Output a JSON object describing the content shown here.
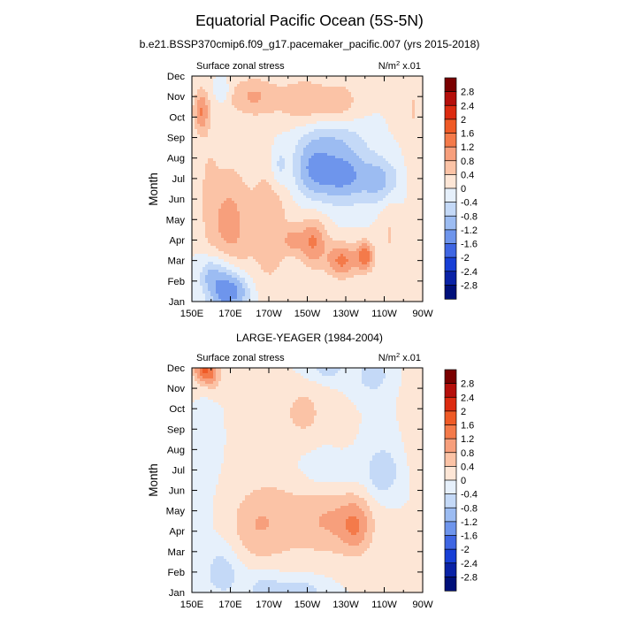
{
  "title": "Equatorial Pacific Ocean (5S-5N)",
  "colorbar": {
    "levels": [
      "2.8",
      "2.4",
      "2",
      "1.6",
      "1.2",
      "0.8",
      "0.4",
      "0",
      "-0.4",
      "-0.8",
      "-1.2",
      "-1.6",
      "-2",
      "-2.4",
      "-2.8"
    ],
    "colors": [
      "#7a0000",
      "#b50f0b",
      "#dc2b10",
      "#ef5a26",
      "#f47a4a",
      "#f79f7c",
      "#fbc3a6",
      "#fde6d6",
      "#e6f0fb",
      "#c4d9f7",
      "#9cbcf2",
      "#6e95ec",
      "#3f66e3",
      "#173fd6",
      "#0a22a6",
      "#00107a"
    ]
  },
  "chart_data": [
    {
      "type": "heatmap",
      "panel_title": "b.e21.BSSP370cmip6.f09_g17.pacemaker_pacific.007 (yrs 2015-2018)",
      "left_label": "Surface zonal stress",
      "right_label_prefix": "N/m",
      "right_label_sup": "2",
      "right_label_suffix": " x.01",
      "ylabel": "Month",
      "y_ticks": [
        "Jan",
        "Feb",
        "Mar",
        "Apr",
        "May",
        "Jun",
        "Jul",
        "Aug",
        "Sep",
        "Oct",
        "Nov",
        "Dec"
      ],
      "x_ticks": [
        "150E",
        "170E",
        "170W",
        "150W",
        "130W",
        "110W",
        "90W"
      ],
      "x_range_lon": [
        150,
        270
      ],
      "y_range_month": [
        1,
        12
      ],
      "features": [
        {
          "lon": 169.5,
          "month": 4.5,
          "sx": 7.1,
          "sy": 2.18,
          "amp": 1.01
        },
        {
          "lon": 190.7,
          "month": 4.8,
          "sx": 7.2,
          "sy": 2.25,
          "amp": 0.72
        },
        {
          "lon": 212.7,
          "month": 3.9,
          "sx": 5.3,
          "sy": 0.83,
          "amp": 1.26
        },
        {
          "lon": 228.1,
          "month": 3.0,
          "sx": 5.6,
          "sy": 0.6,
          "amp": 1.33
        },
        {
          "lon": 240.0,
          "month": 3.2,
          "sx": 3.3,
          "sy": 0.53,
          "amp": 1.4
        },
        {
          "lon": 202.2,
          "month": 4.0,
          "sx": 3.2,
          "sy": 0.45,
          "amp": 0.7
        },
        {
          "lon": 212.7,
          "month": 7.5,
          "sx": 7.3,
          "sy": 0.98,
          "amp": -1.12
        },
        {
          "lon": 229.1,
          "month": 7.2,
          "sx": 9.3,
          "sy": 0.98,
          "amp": -1.33
        },
        {
          "lon": 249.3,
          "month": 6.9,
          "sx": 6.9,
          "sy": 0.83,
          "amp": -0.98
        },
        {
          "lon": 195.3,
          "month": 7.6,
          "sx": 3.3,
          "sy": 0.75,
          "amp": -0.63
        },
        {
          "lon": 223.0,
          "month": 9.0,
          "sx": 12.6,
          "sy": 0.6,
          "amp": -0.49
        },
        {
          "lon": 166.5,
          "month": 1.7,
          "sx": 6.1,
          "sy": 1.05,
          "amp": -1.54
        },
        {
          "lon": 174.4,
          "month": 1.5,
          "sx": 5.3,
          "sy": 0.6,
          "amp": -0.84
        },
        {
          "lon": 158.8,
          "month": 2.3,
          "sx": 3.7,
          "sy": 0.6,
          "amp": -0.56
        },
        {
          "lon": 154.9,
          "month": 10.3,
          "sx": 2.9,
          "sy": 0.75,
          "amp": 1.19
        },
        {
          "lon": 181.7,
          "month": 11.0,
          "sx": 9.3,
          "sy": 0.68,
          "amp": 0.84
        },
        {
          "lon": 208.4,
          "month": 10.8,
          "sx": 9.3,
          "sy": 0.83,
          "amp": 0.7
        },
        {
          "lon": 227.6,
          "month": 10.8,
          "sx": 7.0,
          "sy": 0.68,
          "amp": 0.56
        },
        {
          "lon": 265.0,
          "month": 10.5,
          "sx": 2.1,
          "sy": 0.98,
          "amp": 0.42
        },
        {
          "lon": 158.8,
          "month": 6.5,
          "sx": 3.5,
          "sy": 1.95,
          "amp": 0.42
        },
        {
          "lon": 253.1,
          "month": 4.5,
          "sx": 4.1,
          "sy": 2.25,
          "amp": 0.42
        },
        {
          "lon": 165.8,
          "month": 11.3,
          "sx": 2.6,
          "sy": 0.38,
          "amp": -0.56
        },
        {
          "lon": 265.0,
          "month": 7.5,
          "sx": 3.5,
          "sy": 1.35,
          "amp": 0.28
        }
      ]
    },
    {
      "type": "heatmap",
      "panel_title": "LARGE-YEAGER (1984-2004)",
      "left_label": "Surface zonal stress",
      "right_label_prefix": "N/m",
      "right_label_sup": "2",
      "right_label_suffix": " x.01",
      "ylabel": "Month",
      "y_ticks": [
        "Jan",
        "Feb",
        "Mar",
        "Apr",
        "May",
        "Jun",
        "Jul",
        "Aug",
        "Sep",
        "Oct",
        "Nov",
        "Dec"
      ],
      "x_ticks": [
        "150E",
        "170E",
        "170W",
        "150W",
        "130W",
        "110W",
        "90W"
      ],
      "x_range_lon": [
        150,
        270
      ],
      "y_range_month": [
        1,
        12
      ],
      "features": [
        {
          "lon": 190.7,
          "month": 4.5,
          "sx": 10.9,
          "sy": 1.5,
          "amp": 0.63
        },
        {
          "lon": 222.5,
          "month": 4.5,
          "sx": 14.6,
          "sy": 1.2,
          "amp": 0.84
        },
        {
          "lon": 235.3,
          "month": 4.2,
          "sx": 5.2,
          "sy": 0.9,
          "amp": 0.77
        },
        {
          "lon": 178.9,
          "month": 4.2,
          "sx": 7.2,
          "sy": 1.2,
          "amp": 0.35
        },
        {
          "lon": 208.3,
          "month": 9.8,
          "sx": 7.3,
          "sy": 0.9,
          "amp": 0.56
        },
        {
          "lon": 187.4,
          "month": 10.1,
          "sx": 7.2,
          "sy": 0.83,
          "amp": 0.35
        },
        {
          "lon": 227.6,
          "month": 9.0,
          "sx": 3.3,
          "sy": 0.53,
          "amp": 0.35
        },
        {
          "lon": 156.0,
          "month": 11.9,
          "sx": 3.7,
          "sy": 0.45,
          "amp": 1.47
        },
        {
          "lon": 161.1,
          "month": 11.6,
          "sx": 3.3,
          "sy": 0.53,
          "amp": 0.7
        },
        {
          "lon": 249.3,
          "month": 6.9,
          "sx": 5.9,
          "sy": 0.9,
          "amp": -0.77
        },
        {
          "lon": 223.0,
          "month": 6.9,
          "sx": 11.1,
          "sy": 0.68,
          "amp": -0.35
        },
        {
          "lon": 244.0,
          "month": 11.6,
          "sx": 5.3,
          "sy": 0.53,
          "amp": -0.77
        },
        {
          "lon": 220.6,
          "month": 11.9,
          "sx": 7.3,
          "sy": 0.38,
          "amp": -0.56
        },
        {
          "lon": 165.8,
          "month": 2.0,
          "sx": 6.9,
          "sy": 0.9,
          "amp": -0.63
        },
        {
          "lon": 188.6,
          "month": 1.2,
          "sx": 8.1,
          "sy": 0.6,
          "amp": -0.63
        },
        {
          "lon": 208.4,
          "month": 1.1,
          "sx": 8.1,
          "sy": 0.45,
          "amp": -0.56
        },
        {
          "lon": 153.8,
          "month": 5.5,
          "sx": 2.9,
          "sy": 1.35,
          "amp": -0.28
        },
        {
          "lon": 158.8,
          "month": 8.5,
          "sx": 2.9,
          "sy": 1.2,
          "amp": -0.28
        },
        {
          "lon": 264.8,
          "month": 9.5,
          "sx": 2.9,
          "sy": 1.5,
          "amp": 0.28
        }
      ]
    }
  ]
}
